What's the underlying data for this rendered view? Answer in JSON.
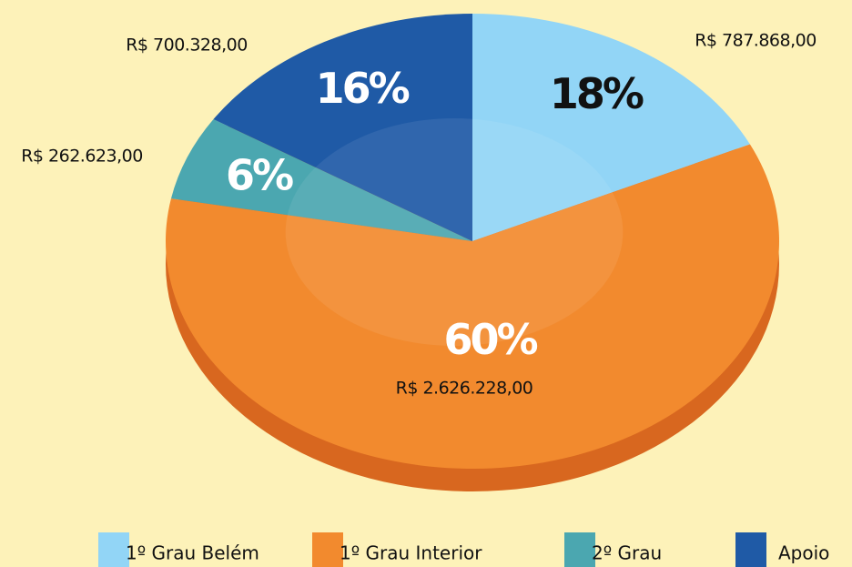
{
  "chart_data": {
    "type": "pie",
    "categories": [
      "1º Grau Belém",
      "1º Grau Interior",
      "2º Grau",
      "Apoio"
    ],
    "values": [
      18,
      60,
      6,
      16
    ],
    "value_labels": [
      "18%",
      "60%",
      "6%",
      "16%"
    ],
    "value_label_colors": [
      "#111111",
      "#ffffff",
      "#ffffff",
      "#ffffff"
    ],
    "amount_labels": [
      "R$ 787.868,00",
      "R$ 2.626.228,00",
      "R$ 262.623,00",
      "R$ 700.328,00"
    ],
    "colors": [
      "#92d5f6",
      "#f28a2e",
      "#4ba7b0",
      "#1f5aa6"
    ],
    "side_color": "#d8671f"
  }
}
